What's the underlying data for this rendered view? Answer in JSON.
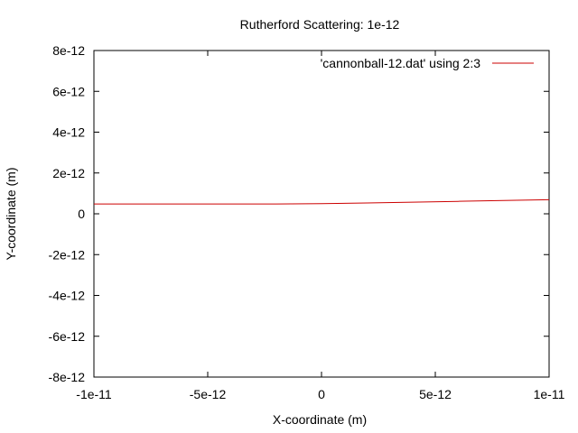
{
  "chart_data": {
    "type": "line",
    "title": "Rutherford Scattering: 1e-12",
    "xlabel": "X-coordinate (m)",
    "ylabel": "Y-coordinate (m)",
    "xlim": [
      -1e-11,
      1e-11
    ],
    "ylim": [
      -8e-12,
      8e-12
    ],
    "x_ticks": [
      {
        "value": -1e-11,
        "label": "-1e-11"
      },
      {
        "value": -5e-12,
        "label": "-5e-12"
      },
      {
        "value": 0,
        "label": "0"
      },
      {
        "value": 5e-12,
        "label": "5e-12"
      },
      {
        "value": 1e-11,
        "label": "1e-11"
      }
    ],
    "y_ticks": [
      {
        "value": -8e-12,
        "label": "-8e-12"
      },
      {
        "value": -6e-12,
        "label": "-6e-12"
      },
      {
        "value": -4e-12,
        "label": "-4e-12"
      },
      {
        "value": -2e-12,
        "label": "-2e-12"
      },
      {
        "value": 0,
        "label": "0"
      },
      {
        "value": 2e-12,
        "label": "2e-12"
      },
      {
        "value": 4e-12,
        "label": "4e-12"
      },
      {
        "value": 6e-12,
        "label": "6e-12"
      },
      {
        "value": 8e-12,
        "label": "8e-12"
      }
    ],
    "grid": false,
    "legend_position": "top-right",
    "series": [
      {
        "name": "'cannonball-12.dat' using 2:3",
        "color": "#cc0000",
        "x": [
          -1e-11,
          -8e-12,
          -6e-12,
          -4e-12,
          -2e-12,
          0,
          2e-12,
          4e-12,
          6e-12,
          8e-12,
          1e-11
        ],
        "y": [
          4.8e-13,
          4.8e-13,
          4.8e-13,
          4.8e-13,
          4.8e-13,
          5e-13,
          5.3e-13,
          5.7e-13,
          6.1e-13,
          6.5e-13,
          6.9e-13
        ]
      }
    ]
  }
}
